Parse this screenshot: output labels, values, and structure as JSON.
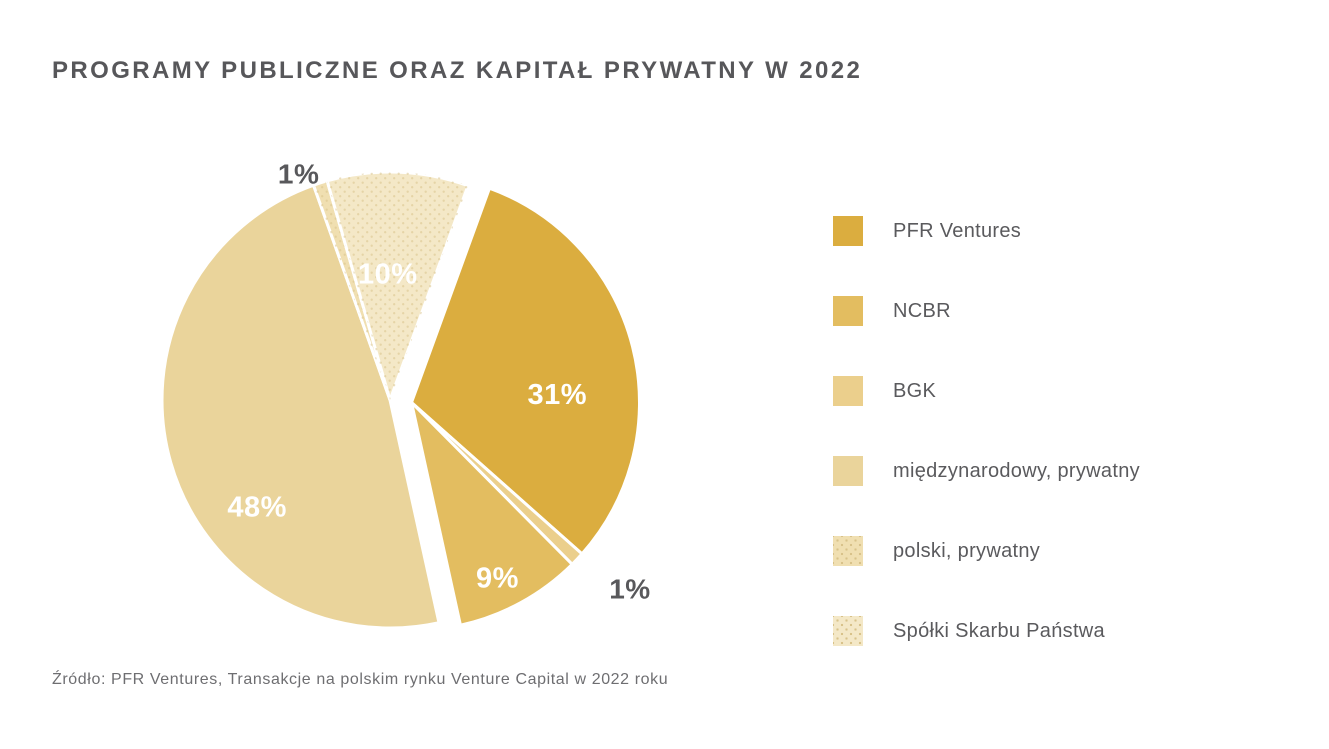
{
  "header": {
    "title": "PROGRAMY PUBLICZNE ORAZ KAPITAŁ PRYWATNY W 2022"
  },
  "footer": {
    "source": "Źródło: PFR Ventures, Transakcje na polskim rynku Venture Capital w 2022 roku"
  },
  "colors": {
    "background": "#FFFFFF",
    "title_text": "#57575A",
    "legend_text": "#5A5A5D",
    "inside_label": "#FFFFFF",
    "outside_label": "#58585B",
    "source_text": "#6E6E71",
    "slice_border": "#FFFFFF",
    "texture_dot": "#D8C28A"
  },
  "chart_data": {
    "type": "pie",
    "title": "PROGRAMY PUBLICZNE ORAZ KAPITAŁ PRYWATNY W 2022",
    "unit": "percent",
    "direction": "clockwise",
    "start_angle_deg": 20,
    "legend_position": "right",
    "exploded_group": "public",
    "slices": [
      {
        "label": "PFR Ventures",
        "value": 31,
        "display": "31%",
        "color": "#DBAD3F",
        "group": "public",
        "textured": false
      },
      {
        "label": "NCBR",
        "value": 9,
        "display": "9%",
        "color": "#E3BD60",
        "group": "public",
        "textured": false
      },
      {
        "label": "BGK",
        "value": 1,
        "display": "1%",
        "color": "#EBCF8C",
        "group": "public",
        "textured": false
      },
      {
        "label": "międzynarodowy, prywatny",
        "value": 48,
        "display": "48%",
        "color": "#EAD49B",
        "group": "private",
        "textured": false
      },
      {
        "label": "polski, prywatny",
        "value": 1,
        "display": "1%",
        "color": "#F0DFB1",
        "group": "private",
        "textured": true
      },
      {
        "label": "Spółki Skarbu Państwa",
        "value": 10,
        "display": "10%",
        "color": "#F4E8C7",
        "group": "private",
        "textured": true
      }
    ],
    "draw_order": [
      "PFR Ventures",
      "BGK",
      "NCBR",
      "międzynarodowy, prywatny",
      "polski, prywatny",
      "Spółki Skarbu Państwa"
    ]
  }
}
